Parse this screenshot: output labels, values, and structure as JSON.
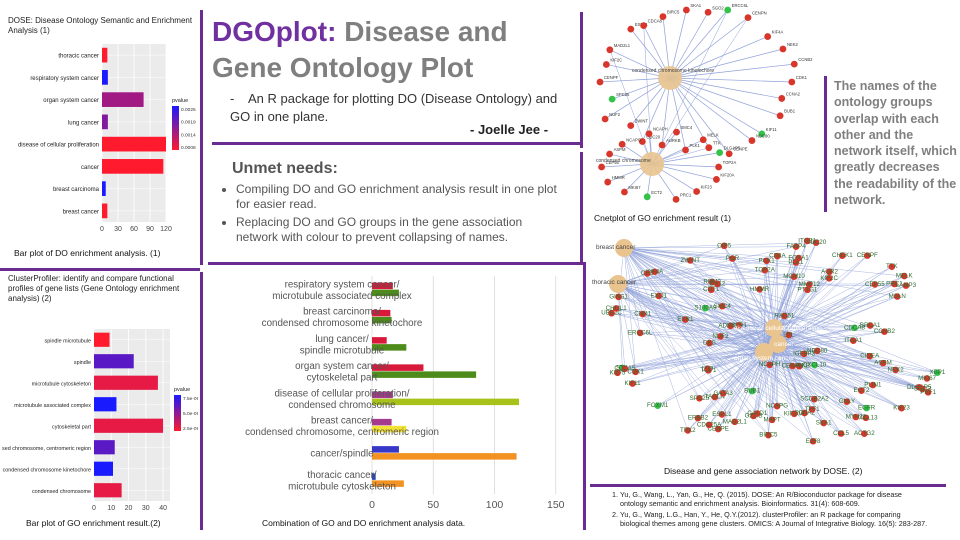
{
  "title": {
    "accent": "DGOplot:",
    "rest": "Disease and Gene Ontology Plot"
  },
  "title_bullet": "An R package for plotting DO (Disease Ontology) and GO in one plane.",
  "author": "- Joelle Jee -",
  "unmet": {
    "heading": "Unmet needs:",
    "bullets": [
      "Compiling DO and GO enrichment analysis result in one plot for easier read.",
      "Replacing DO and GO groups in the gene association network with colour to prevent collapsing of names."
    ]
  },
  "dose_panel": {
    "heading": "DOSE: Disease Ontology Semantic and Enrichment Analysis (1)",
    "caption": "Bar plot of DO enrichment analysis. (1)"
  },
  "cp_panel": {
    "heading": "ClusterProfiler: identify and compare functional profiles of gene lists (Gene Ontology enrichment analysis) (2)",
    "caption": "Bar plot of GO enrichment result.(2)"
  },
  "combo_caption": "Combination of GO and DO enrichment analysis data.",
  "cnet_caption": "Cnetplot of GO enrichment result (1)",
  "network_caption": "Disease and gene association network by DOSE. (2)",
  "readability_note": "The names of the ontology groups overlap with each other and the network itself, which greatly decreases the readability of the network.",
  "references": [
    "Yu, G., Wang, L., Yan, G., He, Q. (2015). DOSE: An R/Bioconductor package for disease ontology semantic and enrichment analysis. Bioinformatics. 31(4): 608-609.",
    "Yu, G., Wang, L.G., Han, Y., He, Q.Y.(2012). clusterProfiler: an R package for comparing biological themes among gene clusters. OMICS: A Journal of Integrative Biology. 16(5): 283-287."
  ],
  "colors": {
    "accent": "#7030a0",
    "do_bar": "#ee1c3c",
    "go_bar": "#4d8c1a",
    "network_edge": "#8fa0d8",
    "gene_node": "#d9362b",
    "group_node": "#e9c48f"
  },
  "chart_data": [
    {
      "type": "bar",
      "orientation": "horizontal",
      "categories": [
        "thoracic cancer",
        "respiratory system cancer",
        "organ system cancer",
        "lung cancer",
        "disease of cellular proliferation",
        "cancer",
        "breast carcinoma",
        "breast cancer"
      ],
      "values": [
        10,
        11,
        78,
        11,
        120,
        115,
        7,
        10
      ],
      "pvalues": [
        0.0003,
        0.0025,
        0.0012,
        0.0015,
        0.0003,
        0.0003,
        0.0025,
        0.0003
      ],
      "ticks": [
        "0",
        "30",
        "60",
        "90",
        "120"
      ],
      "xlim": [
        0,
        120
      ],
      "legend_title": "pvalue",
      "legend_labels": [
        "0.0025",
        "0.0019",
        "0.0014",
        "0.0008"
      ],
      "legend_position": "right"
    },
    {
      "type": "bar",
      "orientation": "horizontal",
      "categories": [
        "spindle microtubule",
        "spindle",
        "microtubule cytoskeleton",
        "microtubule associated complex",
        "cytoskeletal part",
        "condensed chromosome, centromeric region",
        "condensed chromosome kinetochore",
        "condensed chromosome"
      ],
      "values": [
        9,
        23,
        37,
        13,
        40,
        12,
        11,
        16
      ],
      "pvalues": [
        2e-07,
        5.5e-06,
        1e-06,
        7.5e-06,
        1e-06,
        5.5e-06,
        7.5e-06,
        1e-06
      ],
      "ticks": [
        "0",
        "10",
        "20",
        "30",
        "40"
      ],
      "xlim": [
        0,
        44
      ],
      "legend_title": "pvalue",
      "legend_labels": [
        "7.5e-09",
        "5.0e-09",
        "2.5e-09"
      ],
      "legend_position": "right"
    },
    {
      "type": "bar",
      "orientation": "horizontal",
      "categories": [
        "respiratory system cancer/ microtubule associated complex",
        "breast carcinoma/ condensed chromosome kinetochore",
        "lung cancer/ spindle microtubule",
        "organ system cancer/ cytoskeletal part",
        "disease of cellular proliferation/ condensed chromosome",
        "breast cancer/ condensed chromosome, centromeric region",
        "cancer/spindle",
        "thoracic cancer/ microtubule cytoskeleton"
      ],
      "series": [
        {
          "values": [
            17,
            15,
            12,
            42,
            17,
            16,
            22,
            3
          ]
        },
        {
          "values": [
            22,
            16,
            28,
            85,
            120,
            28,
            118,
            26
          ]
        }
      ],
      "series_colors": [
        [
          "#d8193a",
          "#d8193a",
          "#d8193a",
          "#d8193a",
          "#a63a8f",
          "#a63a8f",
          "#3838c8",
          "#2a46b4"
        ],
        [
          "#4d8c1a",
          "#4d8c1a",
          "#4d8c1a",
          "#4d8c1a",
          "#a8c21a",
          "#f2e233",
          "#f29222",
          "#f29222"
        ]
      ],
      "ticks": [
        "0",
        "50",
        "100",
        "150"
      ],
      "xlim": [
        0,
        160
      ]
    }
  ],
  "cnet_labels": [
    "condensed chromosome kinetochore",
    "condensed chromosome"
  ],
  "network_labels": [
    "breast cancer",
    "thoracic cancer",
    "cancer",
    "organ system cancer",
    "disease of cellular proliferation"
  ],
  "network_genes": [
    "CDK1",
    "CCNA2",
    "AURKB",
    "PLK1",
    "TTK",
    "BUB1",
    "KIF11",
    "MAD2L1",
    "CENPE",
    "TOP2A",
    "KIF2C",
    "NUF2",
    "NDC80",
    "CDC20",
    "ESPL1",
    "ZWINT",
    "ERCC6L",
    "CCNB2",
    "CDCA8",
    "SPC25",
    "CENPF",
    "KIF20A",
    "KIF4A",
    "BIRC5",
    "CHEK1",
    "RRM2",
    "UBE2C",
    "DLGAP5",
    "PTTG1",
    "MKI67",
    "CDC25A",
    "FOXM1",
    "KIF23",
    "PRC1",
    "HMMR",
    "ASPM",
    "ECT2",
    "CENPN",
    "SKA1",
    "TPX2",
    "NEK2",
    "MELK",
    "CEP55",
    "OIP5",
    "STIL",
    "SGO2",
    "CDCA5",
    "NCAPG",
    "NCAPH",
    "SMC4",
    "GINS1",
    "MCM10",
    "EXO1",
    "RAD51",
    "BRCA1",
    "CDT1",
    "E2F8",
    "CXCL10",
    "CXCL13",
    "CCL5",
    "ADIPOQ",
    "LEP",
    "CIDEA",
    "PCK1",
    "FABP4",
    "PLIN1",
    "LPL",
    "ESR1",
    "PGR",
    "ERBB2",
    "EGFR",
    "TFF1",
    "KRT5",
    "MMP12",
    "LAMP3",
    "CHI3L1",
    "MSLN",
    "GNLY",
    "ITGA1",
    "ITGB1",
    "GZMB",
    "PRF1",
    "CD8A",
    "S100A9",
    "MYH11",
    "ACTG2",
    "DES",
    "CNN1",
    "TAGLN",
    "CALD1",
    "SPP1",
    "CFD",
    "MAPT",
    "CA12",
    "GATA3",
    "FOXA1",
    "XBP1",
    "AGR2",
    "SCGB2A2",
    "IGFBP3",
    "TOP1"
  ],
  "cnet_genes": [
    "CDK1",
    "CCNA2",
    "BUB1",
    "KIF11",
    "NDC80",
    "CENPE",
    "TTK",
    "PLK1",
    "AURKB",
    "CDC20",
    "ZWINT",
    "NUF2",
    "SPC25",
    "CENPF",
    "KIF2C",
    "MAD2L1",
    "ESPL1",
    "CDCA8",
    "BIRC5",
    "SKA1",
    "SGO2",
    "ERCC6L",
    "CENPN",
    "KIF4A",
    "NEK2",
    "CCNB2",
    "TOP2A",
    "KIF20A",
    "KIF23",
    "PRC1",
    "ECT2",
    "MKI67",
    "HMMR",
    "CEP55",
    "ASPM",
    "NCAPG",
    "NCAPH",
    "SMC4",
    "MELK",
    "DLGAP5"
  ]
}
